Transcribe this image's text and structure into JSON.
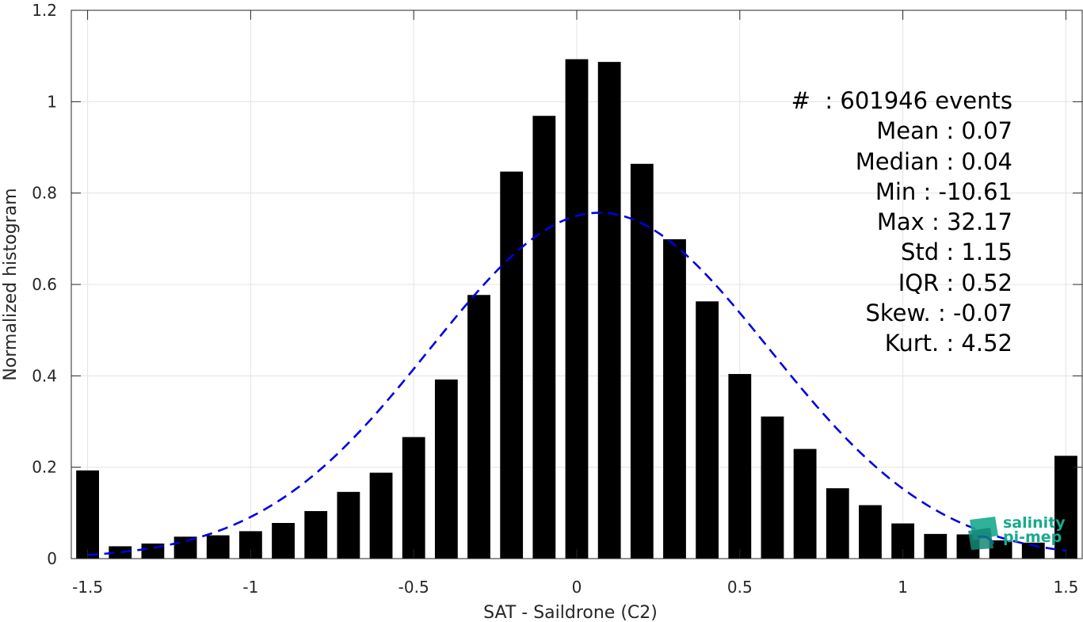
{
  "chart_data": {
    "type": "bar",
    "xlabel": "SAT - Saildrone (C2)",
    "ylabel": "Normalized histogram",
    "xlim": [
      -1.55,
      1.55
    ],
    "ylim": [
      0,
      1.2
    ],
    "xticks": [
      "-1.5",
      "-1",
      "-0.5",
      "0",
      "0.5",
      "1",
      "1.5"
    ],
    "yticks": [
      "0",
      "0.2",
      "0.4",
      "0.6",
      "0.8",
      "1",
      "1.2"
    ],
    "grid": true,
    "bar_width": 0.07,
    "bar_color": "#000000",
    "x": [
      -1.5,
      -1.4,
      -1.3,
      -1.2,
      -1.1,
      -1.0,
      -0.9,
      -0.8,
      -0.7,
      -0.6,
      -0.5,
      -0.4,
      -0.3,
      -0.2,
      -0.1,
      0.0,
      0.1,
      0.2,
      0.3,
      0.4,
      0.5,
      0.6,
      0.7,
      0.8,
      0.9,
      1.0,
      1.1,
      1.2,
      1.3,
      1.4,
      1.5
    ],
    "values": [
      0.193,
      0.027,
      0.033,
      0.048,
      0.051,
      0.06,
      0.078,
      0.104,
      0.146,
      0.188,
      0.266,
      0.392,
      0.577,
      0.847,
      0.969,
      1.093,
      1.087,
      0.864,
      0.699,
      0.563,
      0.404,
      0.311,
      0.24,
      0.154,
      0.117,
      0.077,
      0.054,
      0.053,
      0.04,
      0.035,
      0.225
    ],
    "fit_curve": {
      "style": "dashed",
      "color": "#0000e6",
      "mean": 0.07,
      "std": 0.52,
      "peak": 0.757,
      "x_range": [
        -1.5,
        1.5
      ]
    },
    "stats": [
      "#  : 601946 events",
      "Mean : 0.07",
      "Median : 0.04",
      "Min : -10.61",
      "Max : 32.17",
      "Std : 1.15",
      "IQR : 0.52",
      "Skew. : -0.07",
      "Kurt. : 4.52"
    ]
  },
  "logo": {
    "line1": "salinity",
    "line2": "pi-mep",
    "color": "#19a98f"
  }
}
